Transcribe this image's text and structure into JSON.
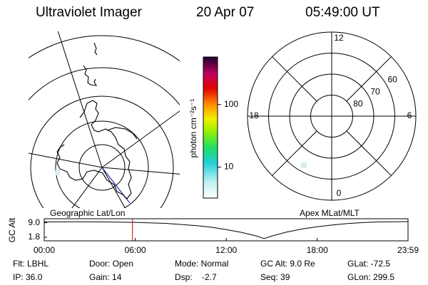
{
  "header": {
    "title": "Ultraviolet Imager",
    "date": "20 Apr 07",
    "time": "05:49:00 UT"
  },
  "colorbar": {
    "label": "photon cm⁻²s⁻¹",
    "scale": "log",
    "lim": [
      3.2,
      575
    ],
    "ticks": [
      10,
      100
    ]
  },
  "polar": {
    "rlim": [
      90,
      50
    ],
    "rings": [
      80,
      70,
      60
    ],
    "hours": [
      12,
      6,
      0,
      18
    ]
  },
  "map_labels": {
    "left": "Geographic Lat/Lon",
    "right": "Apex MLat/MLT"
  },
  "chart_data": {
    "type": "line",
    "y_label": "GC Alt",
    "x": [
      0,
      2,
      4,
      6,
      8,
      10,
      11,
      12,
      13,
      14,
      14.5,
      15,
      16,
      17,
      18,
      19,
      20,
      21,
      22,
      23,
      23.983
    ],
    "values": [
      9.4,
      9.5,
      9.4,
      9.2,
      8.7,
      7.6,
      6.8,
      5.6,
      4.2,
      2.4,
      1.1,
      2.4,
      4.4,
      5.9,
      7.0,
      7.9,
      8.6,
      9.1,
      9.4,
      9.5,
      9.6
    ],
    "color": "#000000",
    "marker_x": 5.817,
    "marker_color": "#cc0000",
    "xlim": [
      0,
      23.983
    ],
    "xticks": [
      {
        "value": 0,
        "label": "00:00"
      },
      {
        "value": 6,
        "label": "06:00"
      },
      {
        "value": 12,
        "label": "12:00"
      },
      {
        "value": 18,
        "label": "18:00"
      },
      {
        "value": 23.983,
        "label": "23:59"
      }
    ],
    "ylim": [
      0,
      11
    ],
    "yticks": [
      {
        "value": 9,
        "label": "9.0"
      },
      {
        "value": 1.8,
        "label": "1.8"
      }
    ]
  },
  "footer": {
    "rows": [
      [
        "Flt: LBHL",
        "Door: Open",
        "Mode: Normal",
        "GC Alt: 9.0 Re",
        "GLat: -72.5"
      ],
      [
        "IP: 36.0",
        "Gain: 14",
        "Dsp:    -2.7",
        "Seq: 39",
        "GLon: 299.5"
      ]
    ]
  }
}
